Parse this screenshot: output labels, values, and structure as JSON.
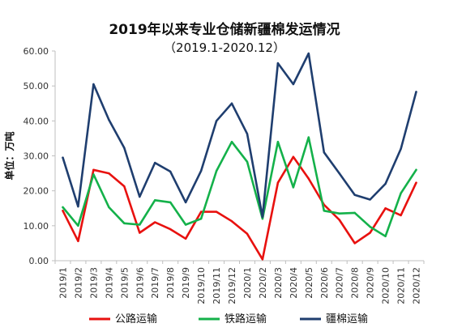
{
  "chart_data": {
    "type": "line",
    "title": "2019年以来专业仓储新疆棉发运情况",
    "subtitle": "（2019.1-2020.12）",
    "ylabel": "单位：万吨",
    "xlabel": "",
    "ylim": [
      0,
      60
    ],
    "yticks": [
      "0.00",
      "10.00",
      "20.00",
      "30.00",
      "40.00",
      "50.00",
      "60.00"
    ],
    "grid": false,
    "legend_position": "bottom",
    "categories": [
      "2019/1",
      "2019/2",
      "2019/3",
      "2019/4",
      "2019/5",
      "2019/6",
      "2019/7",
      "2019/8",
      "2019/9",
      "2019/10",
      "2019/11",
      "2019/12",
      "2020/1",
      "2020/2",
      "2020/3",
      "2020/4",
      "2020/5",
      "2020/6",
      "2020/7",
      "2020/8",
      "2020/9",
      "2020/10",
      "2020/11",
      "2020/12"
    ],
    "series": [
      {
        "name": "公路运输",
        "color": "#e8110f",
        "values": [
          14.3,
          5.6,
          26.0,
          25.0,
          21.3,
          8.0,
          11.0,
          9.0,
          6.3,
          14.0,
          14.0,
          11.3,
          7.7,
          0.4,
          22.3,
          29.7,
          23.5,
          16.0,
          11.7,
          5.0,
          8.0,
          15.0,
          13.0,
          22.3
        ]
      },
      {
        "name": "铁路运输",
        "color": "#14b14a",
        "values": [
          15.3,
          10.0,
          24.7,
          15.3,
          10.7,
          10.3,
          17.3,
          16.7,
          10.3,
          12.0,
          25.7,
          34.0,
          28.3,
          12.0,
          34.0,
          21.0,
          35.3,
          14.3,
          13.5,
          13.7,
          9.7,
          7.0,
          19.3,
          26.0
        ]
      },
      {
        "name": "疆棉运输",
        "color": "#1f3e6f",
        "values": [
          29.5,
          15.5,
          50.5,
          40.3,
          32.3,
          18.3,
          28.0,
          25.5,
          16.7,
          25.7,
          40.0,
          45.0,
          36.3,
          12.5,
          56.5,
          50.5,
          59.3,
          31.0,
          25.0,
          18.8,
          17.5,
          22.0,
          32.0,
          48.3
        ]
      }
    ]
  }
}
